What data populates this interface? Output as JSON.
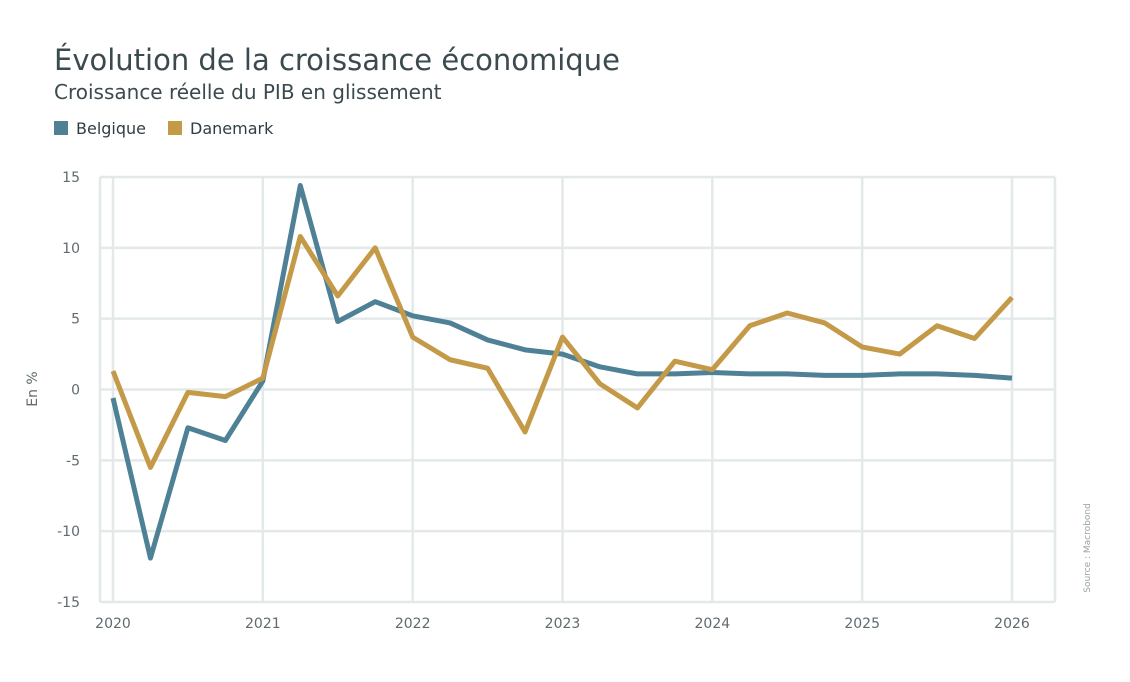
{
  "chart_data": {
    "type": "line",
    "title": "Évolution de la croissance économique",
    "subtitle": "Croissance réelle du PIB en glissement",
    "y_label": "En %",
    "source": "Source : Macrobond",
    "categories": [
      "2020",
      null,
      null,
      null,
      "2021",
      null,
      null,
      null,
      "2022",
      null,
      null,
      null,
      "2023",
      null,
      null,
      null,
      "2024",
      null,
      null,
      null,
      "2025",
      null,
      null,
      null,
      "2026"
    ],
    "series": [
      {
        "name": "Belgique",
        "color": "#4f8196",
        "values": [
          -0.6,
          -11.9,
          -2.7,
          -3.6,
          0.6,
          14.4,
          4.8,
          6.2,
          5.2,
          4.7,
          3.5,
          2.8,
          2.5,
          1.6,
          1.1,
          1.1,
          1.2,
          1.1,
          1.1,
          1.0,
          1.0,
          1.1,
          1.1,
          1.0,
          0.8
        ]
      },
      {
        "name": "Danemark",
        "color": "#c49a48",
        "values": [
          1.3,
          -5.5,
          -0.2,
          -0.5,
          0.8,
          10.8,
          6.6,
          10.0,
          3.7,
          2.1,
          1.5,
          -3.0,
          3.7,
          0.4,
          -1.3,
          2.0,
          1.4,
          4.5,
          5.4,
          4.7,
          3.0,
          2.5,
          4.5,
          3.6,
          6.5
        ]
      }
    ],
    "ylim": [
      -15,
      15
    ],
    "yticks": [
      -15,
      -10,
      -5,
      0,
      5,
      10,
      15
    ],
    "grid": true,
    "legend": "top-left"
  }
}
